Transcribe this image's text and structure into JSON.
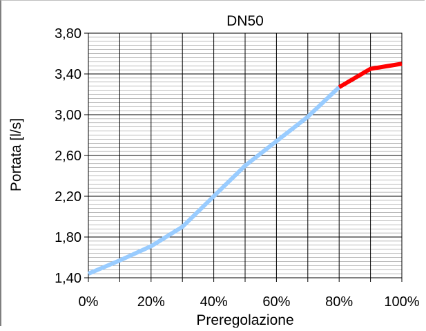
{
  "chart_data": {
    "type": "line",
    "title": "DN50",
    "xlabel": "Preregolazione",
    "ylabel": "Portata [l/s]",
    "xlim": [
      0,
      100
    ],
    "ylim": [
      1.4,
      3.8
    ],
    "x_ticks": [
      "0%",
      "10%",
      "20%",
      "30%",
      "40%",
      "50%",
      "60%",
      "70%",
      "80%",
      "90%",
      "100%"
    ],
    "x_tick_labels_shown": [
      "0%",
      "20%",
      "40%",
      "60%",
      "80%",
      "100%"
    ],
    "y_ticks": [
      "1,40",
      "1,80",
      "2,20",
      "2,60",
      "3,00",
      "3,40",
      "3,80"
    ],
    "grid": {
      "major_x": true,
      "major_y": true,
      "minor_y": true
    },
    "colors": {
      "series_main": "#99ccff",
      "series_end": "#ff0000"
    },
    "series": [
      {
        "color": "#99ccff",
        "x": [
          0,
          10,
          20,
          30,
          40,
          50,
          60,
          70,
          80
        ],
        "values": [
          1.44,
          1.57,
          1.71,
          1.9,
          2.2,
          2.5,
          2.74,
          2.98,
          3.27
        ]
      },
      {
        "color": "#ff0000",
        "x": [
          80,
          90,
          100
        ],
        "values": [
          3.27,
          3.45,
          3.5
        ]
      }
    ]
  }
}
